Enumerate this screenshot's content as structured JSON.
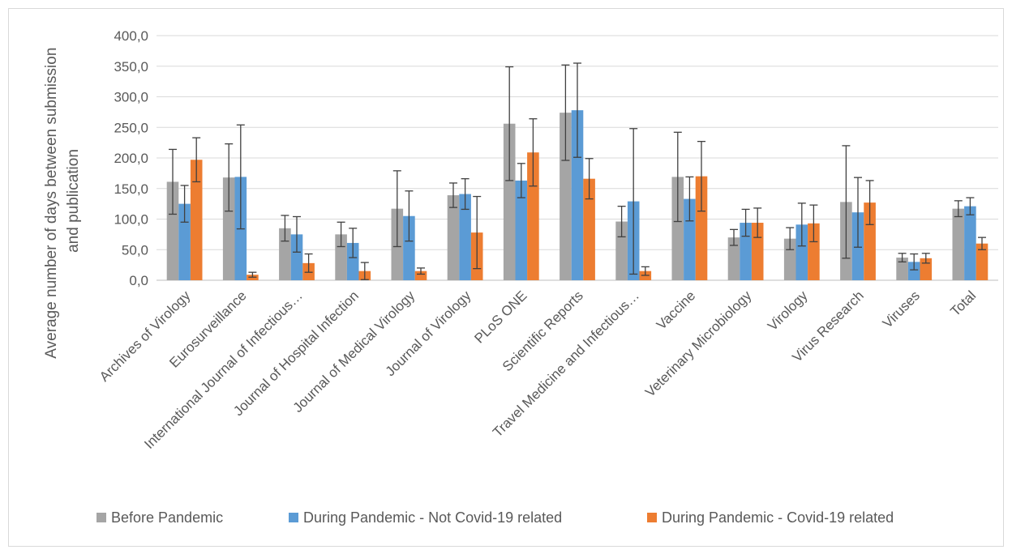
{
  "chart_data": {
    "type": "bar",
    "title": "",
    "xlabel": "",
    "ylabel": "Average number of days  between submission and publication",
    "ylabel_lines": [
      "Average number of days  between submission",
      "and publication"
    ],
    "ylim": [
      0,
      400
    ],
    "yticks": [
      0,
      50,
      100,
      150,
      200,
      250,
      300,
      350,
      400
    ],
    "ytick_labels": [
      "0,0",
      "50,0",
      "100,0",
      "150,0",
      "200,0",
      "250,0",
      "300,0",
      "350,0",
      "400,0"
    ],
    "grid": true,
    "legend_position": "bottom",
    "categories": [
      "Archives of Virology",
      "Eurosurveillance",
      "International Journal of Infectious…",
      "Journal of Hospital Infection",
      "Journal of Medical Virology",
      "Journal of Virology",
      "PLoS ONE",
      "Scientific Reports",
      "Travel Medicine and Infectious…",
      "Vaccine",
      "Veterinary Microbiology",
      "Virology",
      "Virus Research",
      "Viruses",
      "Total"
    ],
    "series": [
      {
        "name": "Before Pandemic",
        "color": "#a5a5a5",
        "values": [
          161,
          168,
          85,
          75,
          117,
          139,
          256,
          274,
          96,
          169,
          70,
          68,
          128,
          37,
          117
        ],
        "error": [
          53,
          55,
          21,
          20,
          62,
          20,
          93,
          78,
          25,
          73,
          13,
          18,
          92,
          7,
          13
        ]
      },
      {
        "name": "During Pandemic - Not Covid-19 related",
        "color": "#5b9bd5",
        "values": [
          125,
          169,
          75,
          61,
          105,
          141,
          163,
          278,
          129,
          133,
          94,
          91,
          111,
          30,
          121
        ],
        "error": [
          30,
          85,
          29,
          24,
          41,
          25,
          28,
          77,
          119,
          36,
          22,
          35,
          57,
          13,
          14
        ]
      },
      {
        "name": "During Pandemic - Covid-19 related",
        "color": "#ed7d31",
        "values": [
          197,
          9,
          28,
          15,
          15,
          78,
          209,
          166,
          15,
          170,
          94,
          93,
          127,
          36,
          60
        ],
        "error": [
          36,
          4,
          15,
          14,
          5,
          59,
          55,
          33,
          7,
          57,
          24,
          30,
          36,
          8,
          10
        ]
      }
    ],
    "error_bar_color": "#404040"
  }
}
